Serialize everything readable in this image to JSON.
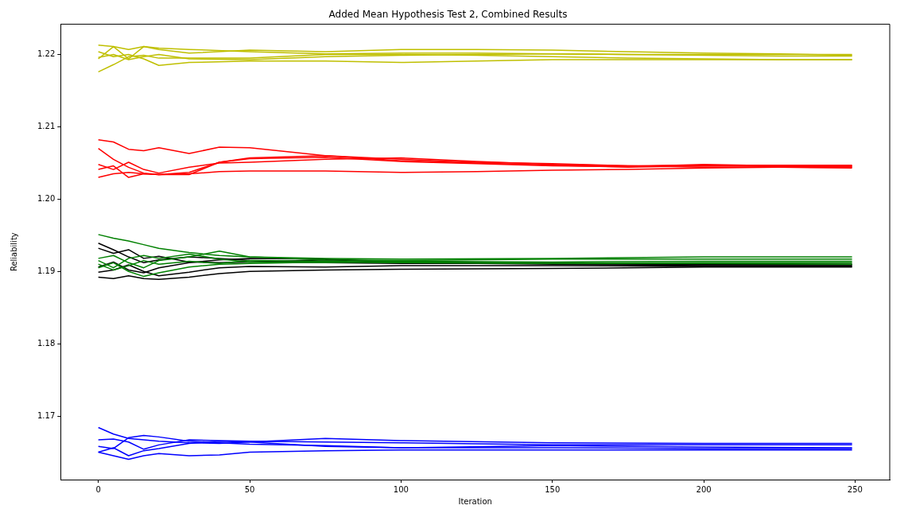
{
  "chart_data": {
    "type": "line",
    "title": "Added Mean Hypothesis Test 2, Combined Results",
    "xlabel": "Iteration",
    "ylabel": "Reliability",
    "xlim": [
      -12.45,
      261.45
    ],
    "ylim": [
      1.1612,
      1.2242
    ],
    "xticks": [
      0,
      50,
      100,
      150,
      200,
      250
    ],
    "yticks": [
      {
        "value": 1.17,
        "label": "1.17"
      },
      {
        "value": 1.18,
        "label": "1.18"
      },
      {
        "value": 1.19,
        "label": "1.19"
      },
      {
        "value": 1.2,
        "label": "1.20"
      },
      {
        "value": 1.21,
        "label": "1.21"
      },
      {
        "value": 1.22,
        "label": "1.22"
      }
    ],
    "grid": false,
    "legend": false,
    "marker": "none",
    "line_style": "solid",
    "series": [
      {
        "color": "#bfbf00",
        "x": [
          0,
          5,
          10,
          15,
          20,
          30,
          50,
          75,
          100,
          125,
          150,
          175,
          200,
          225,
          249
        ],
        "values": [
          1.2213,
          1.2211,
          1.2207,
          1.2211,
          1.2209,
          1.2207,
          1.2204,
          1.2201,
          1.2202,
          1.2202,
          1.2201,
          1.22,
          1.22,
          1.22,
          1.22
        ]
      },
      {
        "color": "#bfbf00",
        "x": [
          0,
          5,
          10,
          15,
          20,
          30,
          50,
          75,
          100,
          125,
          150,
          175,
          200,
          225,
          249
        ],
        "values": [
          1.2176,
          1.2186,
          1.2197,
          1.2199,
          1.2195,
          1.2195,
          1.2195,
          1.22,
          1.22,
          1.2199,
          1.2197,
          1.2195,
          1.2194,
          1.2193,
          1.2193
        ]
      },
      {
        "color": "#bfbf00",
        "x": [
          0,
          5,
          10,
          15,
          20,
          30,
          50,
          75,
          100,
          125,
          150,
          175,
          200,
          225,
          249
        ],
        "values": [
          1.2196,
          1.22,
          1.2193,
          1.2197,
          1.22,
          1.2194,
          1.2193,
          1.2197,
          1.2199,
          1.22,
          1.2201,
          1.22,
          1.2199,
          1.2198,
          1.2198
        ]
      },
      {
        "color": "#bfbf00",
        "x": [
          0,
          5,
          10,
          15,
          20,
          30,
          50,
          75,
          100,
          125,
          150,
          175,
          200,
          225,
          249
        ],
        "values": [
          1.2194,
          1.2211,
          1.2194,
          1.2211,
          1.2207,
          1.2202,
          1.2206,
          1.2204,
          1.2207,
          1.2207,
          1.2206,
          1.2204,
          1.2202,
          1.2201,
          1.2199
        ]
      },
      {
        "color": "#bfbf00",
        "x": [
          0,
          5,
          10,
          15,
          20,
          30,
          50,
          75,
          100,
          125,
          150,
          175,
          200,
          225,
          249
        ],
        "values": [
          1.2204,
          1.2197,
          1.22,
          1.2194,
          1.2185,
          1.2189,
          1.2191,
          1.2191,
          1.2189,
          1.2191,
          1.2193,
          1.2193,
          1.2193,
          1.2193,
          1.2193
        ]
      },
      {
        "color": "#ff0000",
        "x": [
          0,
          5,
          10,
          15,
          20,
          30,
          40,
          50,
          75,
          100,
          125,
          150,
          175,
          200,
          225,
          249
        ],
        "values": [
          1.2082,
          1.2079,
          1.2069,
          1.2067,
          1.2071,
          1.2063,
          1.2072,
          1.2071,
          1.206,
          1.2055,
          1.2051,
          1.2049,
          1.2046,
          1.2047,
          1.2047,
          1.2047
        ]
      },
      {
        "color": "#ff0000",
        "x": [
          0,
          5,
          10,
          15,
          20,
          30,
          40,
          50,
          75,
          100,
          125,
          150,
          175,
          200,
          225,
          249
        ],
        "values": [
          1.207,
          1.2055,
          1.2044,
          1.2036,
          1.2034,
          1.2037,
          1.2051,
          1.2057,
          1.206,
          1.2053,
          1.205,
          1.2047,
          1.2044,
          1.2046,
          1.2045,
          1.2045
        ]
      },
      {
        "color": "#ff0000",
        "x": [
          0,
          5,
          10,
          15,
          20,
          30,
          40,
          50,
          75,
          100,
          125,
          150,
          175,
          200,
          225,
          249
        ],
        "values": [
          1.2048,
          1.2041,
          1.2051,
          1.2041,
          1.2036,
          1.2044,
          1.205,
          1.2051,
          1.2055,
          1.2057,
          1.2052,
          1.2048,
          1.2046,
          1.2044,
          1.2044,
          1.2043
        ]
      },
      {
        "color": "#ff0000",
        "x": [
          0,
          5,
          10,
          15,
          20,
          30,
          40,
          50,
          75,
          100,
          125,
          150,
          175,
          200,
          225,
          249
        ],
        "values": [
          1.2041,
          1.2046,
          1.203,
          1.2035,
          1.2034,
          1.2034,
          1.2051,
          1.2056,
          1.2058,
          1.2052,
          1.2049,
          1.2046,
          1.2045,
          1.2048,
          1.2046,
          1.2046
        ]
      },
      {
        "color": "#ff0000",
        "x": [
          0,
          5,
          10,
          15,
          20,
          30,
          40,
          50,
          75,
          100,
          125,
          150,
          175,
          200,
          225,
          249
        ],
        "values": [
          1.203,
          1.2035,
          1.2037,
          1.2035,
          1.2034,
          1.2035,
          1.2038,
          1.2039,
          1.2039,
          1.2037,
          1.2038,
          1.204,
          1.2041,
          1.2043,
          1.2044,
          1.2044
        ]
      },
      {
        "color": "#008000",
        "x": [
          0,
          5,
          10,
          15,
          20,
          30,
          40,
          50,
          75,
          100,
          150,
          200,
          249
        ],
        "values": [
          1.1951,
          1.1946,
          1.1942,
          1.1937,
          1.1932,
          1.1926,
          1.1922,
          1.192,
          1.1918,
          1.1917,
          1.1918,
          1.192,
          1.192
        ]
      },
      {
        "color": "#008000",
        "x": [
          0,
          5,
          10,
          15,
          20,
          30,
          40,
          50,
          75,
          100,
          150,
          200,
          249
        ],
        "values": [
          1.1918,
          1.1922,
          1.1912,
          1.1905,
          1.1915,
          1.192,
          1.1928,
          1.192,
          1.1916,
          1.1915,
          1.1917,
          1.1917,
          1.1917
        ]
      },
      {
        "color": "#008000",
        "x": [
          0,
          5,
          10,
          15,
          20,
          30,
          40,
          50,
          75,
          100,
          150,
          200,
          249
        ],
        "values": [
          1.1915,
          1.1905,
          1.1918,
          1.1922,
          1.1918,
          1.1924,
          1.1917,
          1.1913,
          1.1912,
          1.1914,
          1.1913,
          1.1914,
          1.1914
        ]
      },
      {
        "color": "#008000",
        "x": [
          0,
          5,
          10,
          15,
          20,
          30,
          40,
          50,
          75,
          100,
          150,
          200,
          249
        ],
        "values": [
          1.1905,
          1.1912,
          1.19,
          1.1893,
          1.1898,
          1.1906,
          1.191,
          1.1911,
          1.1913,
          1.1912,
          1.1911,
          1.1912,
          1.1912
        ]
      },
      {
        "color": "#008000",
        "x": [
          0,
          5,
          10,
          15,
          20,
          30,
          40,
          50,
          75,
          100,
          150,
          200,
          249
        ],
        "values": [
          1.191,
          1.1902,
          1.1908,
          1.1915,
          1.191,
          1.1914,
          1.1911,
          1.1915,
          1.1914,
          1.1913,
          1.1911,
          1.1911,
          1.191
        ]
      },
      {
        "color": "#000000",
        "x": [
          0,
          5,
          10,
          15,
          20,
          30,
          40,
          50,
          75,
          100,
          150,
          200,
          249
        ],
        "values": [
          1.1939,
          1.193,
          1.192,
          1.1912,
          1.1916,
          1.192,
          1.1918,
          1.1915,
          1.1912,
          1.1911,
          1.1911,
          1.191,
          1.191
        ]
      },
      {
        "color": "#000000",
        "x": [
          0,
          5,
          10,
          15,
          20,
          30,
          40,
          50,
          75,
          100,
          150,
          200,
          249
        ],
        "values": [
          1.1932,
          1.1925,
          1.193,
          1.1918,
          1.1921,
          1.1913,
          1.1912,
          1.1913,
          1.1916,
          1.1914,
          1.1911,
          1.1909,
          1.1909
        ]
      },
      {
        "color": "#000000",
        "x": [
          0,
          5,
          10,
          15,
          20,
          30,
          40,
          50,
          75,
          100,
          150,
          200,
          249
        ],
        "values": [
          1.1906,
          1.1913,
          1.1902,
          1.1898,
          1.1905,
          1.1912,
          1.1916,
          1.1918,
          1.1917,
          1.1912,
          1.191,
          1.1908,
          1.1908
        ]
      },
      {
        "color": "#000000",
        "x": [
          0,
          5,
          10,
          15,
          20,
          30,
          40,
          50,
          75,
          100,
          150,
          200,
          249
        ],
        "values": [
          1.1899,
          1.1902,
          1.1909,
          1.19,
          1.1894,
          1.1899,
          1.1905,
          1.1907,
          1.1906,
          1.1908,
          1.1908,
          1.1907,
          1.1907
        ]
      },
      {
        "color": "#000000",
        "x": [
          0,
          5,
          10,
          15,
          20,
          30,
          40,
          50,
          75,
          100,
          150,
          200,
          249
        ],
        "values": [
          1.1892,
          1.189,
          1.1894,
          1.189,
          1.1889,
          1.1892,
          1.1897,
          1.19,
          1.1902,
          1.1903,
          1.1904,
          1.1906,
          1.1906
        ]
      },
      {
        "color": "#0000ff",
        "x": [
          0,
          5,
          10,
          15,
          20,
          30,
          40,
          50,
          75,
          100,
          150,
          200,
          249
        ],
        "values": [
          1.1684,
          1.1675,
          1.1669,
          1.1667,
          1.1665,
          1.1663,
          1.1662,
          1.1664,
          1.1669,
          1.1666,
          1.1663,
          1.1662,
          1.1662
        ]
      },
      {
        "color": "#0000ff",
        "x": [
          0,
          5,
          10,
          15,
          20,
          30,
          40,
          50,
          75,
          100,
          150,
          200,
          249
        ],
        "values": [
          1.1667,
          1.1668,
          1.1664,
          1.1654,
          1.166,
          1.1667,
          1.1666,
          1.1665,
          1.1664,
          1.1663,
          1.166,
          1.166,
          1.166
        ]
      },
      {
        "color": "#0000ff",
        "x": [
          0,
          5,
          10,
          15,
          20,
          30,
          40,
          50,
          75,
          100,
          150,
          200,
          249
        ],
        "values": [
          1.1658,
          1.1655,
          1.167,
          1.1673,
          1.1671,
          1.1665,
          1.1663,
          1.1661,
          1.1659,
          1.1656,
          1.1659,
          1.1657,
          1.1656
        ]
      },
      {
        "color": "#0000ff",
        "x": [
          0,
          5,
          10,
          15,
          20,
          30,
          40,
          50,
          75,
          100,
          150,
          200,
          249
        ],
        "values": [
          1.165,
          1.1656,
          1.1645,
          1.1652,
          1.1655,
          1.1662,
          1.1665,
          1.1664,
          1.1658,
          1.1656,
          1.1656,
          1.1655,
          1.1655
        ]
      },
      {
        "color": "#0000ff",
        "x": [
          0,
          5,
          10,
          15,
          20,
          30,
          40,
          50,
          75,
          100,
          150,
          200,
          249
        ],
        "values": [
          1.165,
          1.1645,
          1.164,
          1.1645,
          1.1648,
          1.1645,
          1.1646,
          1.165,
          1.1652,
          1.1653,
          1.1653,
          1.1653,
          1.1653
        ]
      }
    ]
  }
}
